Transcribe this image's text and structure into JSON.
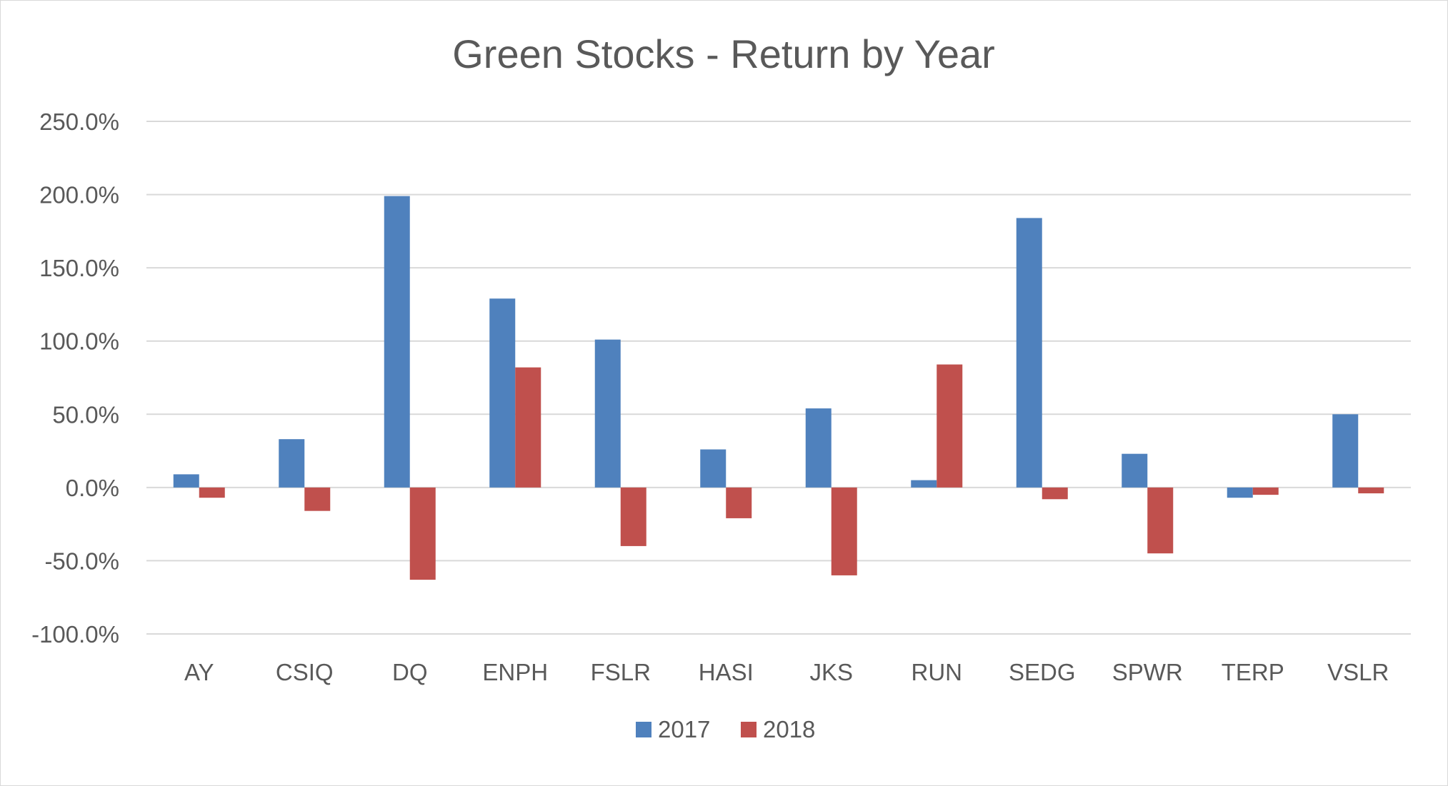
{
  "chart_data": {
    "type": "bar",
    "title": "Green Stocks - Return by Year",
    "xlabel": "",
    "ylabel": "",
    "categories": [
      "AY",
      "CSIQ",
      "DQ",
      "ENPH",
      "FSLR",
      "HASI",
      "JKS",
      "RUN",
      "SEDG",
      "SPWR",
      "TERP",
      "VSLR"
    ],
    "series": [
      {
        "name": "2017",
        "color": "#4f81bd",
        "values": [
          9,
          33,
          199,
          129,
          101,
          26,
          54,
          5,
          184,
          23,
          -7,
          50
        ]
      },
      {
        "name": "2018",
        "color": "#c0504d",
        "values": [
          -7,
          -16,
          -63,
          82,
          -40,
          -21,
          -60,
          84,
          -8,
          -45,
          -5,
          -4
        ]
      }
    ],
    "ylim": [
      -100,
      250
    ],
    "yticks": [
      -100,
      -50,
      0,
      50,
      100,
      150,
      200,
      250
    ],
    "ytick_labels": [
      "-100.0%",
      "-50.0%",
      "0.0%",
      "50.0%",
      "100.0%",
      "150.0%",
      "200.0%",
      "250.0%"
    ],
    "grid": true,
    "legend": "bottom"
  }
}
